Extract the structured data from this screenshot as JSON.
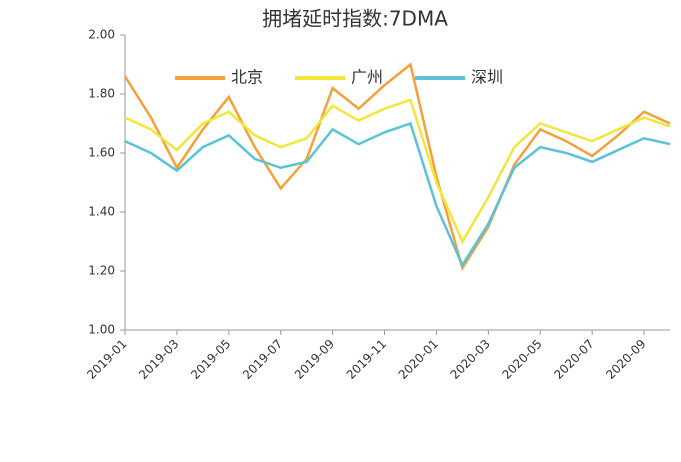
{
  "chart_data": {
    "type": "line",
    "title": "拥堵延时指数:7DMA",
    "categories": [
      "2019-01",
      null,
      "2019-03",
      null,
      "2019-05",
      null,
      "2019-07",
      null,
      "2019-09",
      null,
      "2019-11",
      null,
      "2020-01",
      null,
      "2020-03",
      null,
      "2020-05",
      null,
      "2020-07",
      null,
      "2020-09",
      null
    ],
    "series": [
      {
        "name": "北京",
        "color": "#f5a03c",
        "values": [
          1.86,
          1.72,
          1.55,
          1.68,
          1.79,
          1.62,
          1.48,
          1.58,
          1.82,
          1.75,
          1.83,
          1.9,
          1.52,
          1.21,
          1.35,
          1.56,
          1.68,
          1.64,
          1.59,
          1.66,
          1.74,
          1.7
        ]
      },
      {
        "name": "广州",
        "color": "#f2e63a",
        "values": [
          1.72,
          1.68,
          1.61,
          1.7,
          1.74,
          1.66,
          1.62,
          1.65,
          1.76,
          1.71,
          1.75,
          1.78,
          1.5,
          1.3,
          1.45,
          1.62,
          1.7,
          1.67,
          1.64,
          1.68,
          1.72,
          1.69
        ]
      },
      {
        "name": "深圳",
        "color": "#5bc2d8",
        "values": [
          1.64,
          1.6,
          1.54,
          1.62,
          1.66,
          1.58,
          1.55,
          1.57,
          1.68,
          1.63,
          1.67,
          1.7,
          1.42,
          1.22,
          1.36,
          1.55,
          1.62,
          1.6,
          1.57,
          1.61,
          1.65,
          1.63
        ]
      }
    ],
    "ylim": [
      1.0,
      2.0
    ],
    "yticks": [
      {
        "value": 1.0,
        "label": "1.00"
      },
      {
        "value": 1.2,
        "label": "1.20"
      },
      {
        "value": 1.4,
        "label": "1.40"
      },
      {
        "value": 1.6,
        "label": "1.60"
      },
      {
        "value": 1.8,
        "label": "1.80"
      },
      {
        "value": 2.0,
        "label": "2.00"
      }
    ],
    "grid": false,
    "legend": "top"
  }
}
